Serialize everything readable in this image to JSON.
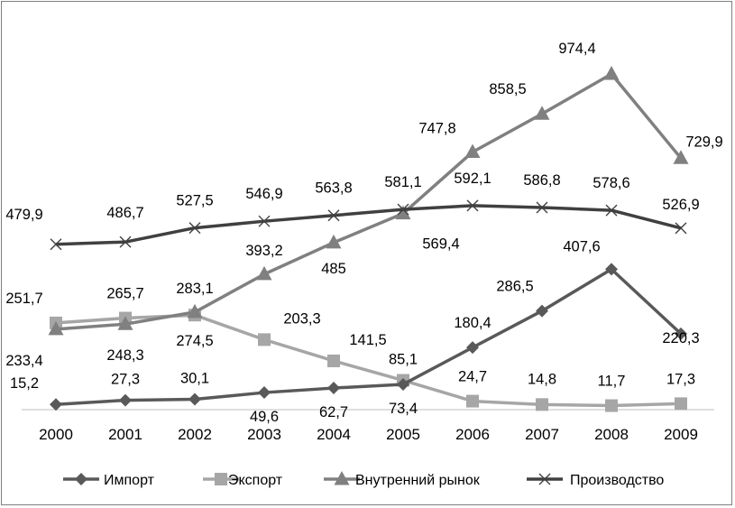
{
  "chart_data": {
    "type": "line",
    "title": "",
    "xlabel": "",
    "ylabel": "",
    "categories": [
      "2000",
      "2001",
      "2002",
      "2003",
      "2004",
      "2005",
      "2006",
      "2007",
      "2008",
      "2009"
    ],
    "ylim": [
      0,
      1100
    ],
    "grid": false,
    "legend_position": "bottom",
    "series": [
      {
        "name": "Импорт",
        "marker": "diamond",
        "color": "#595959",
        "values": [
          15.2,
          27.3,
          30.1,
          49.6,
          62.7,
          73.4,
          180.4,
          286.5,
          407.6,
          220.3
        ],
        "labels": [
          "15,2",
          "27,3",
          "30,1",
          "49,6",
          "62,7",
          "73,4",
          "180,4",
          "286,5",
          "407,6",
          "220,3"
        ]
      },
      {
        "name": "Экспорт",
        "marker": "square",
        "color": "#a6a6a6",
        "values": [
          251.7,
          265.7,
          274.5,
          203.3,
          141.5,
          85.1,
          24.7,
          14.8,
          11.7,
          17.3
        ],
        "labels": [
          "251,7",
          "265,7",
          "274,5",
          "203,3",
          "141,5",
          "85,1",
          "24,7",
          "14,8",
          "11,7",
          "17,3"
        ]
      },
      {
        "name": "Внутренний рынок",
        "marker": "triangle",
        "color": "#808080",
        "values": [
          233.4,
          248.3,
          283.1,
          393.2,
          485,
          569.4,
          747.8,
          858.5,
          974.4,
          729.9
        ],
        "labels": [
          "233,4",
          "248,3",
          "283,1",
          "393,2",
          "485",
          "569,4",
          "747,8",
          "858,5",
          "974,4",
          "729,9"
        ]
      },
      {
        "name": "Производство",
        "marker": "x",
        "color": "#404040",
        "values": [
          479.9,
          486.7,
          527.5,
          546.9,
          563.8,
          581.1,
          592.1,
          586.8,
          578.6,
          526.9
        ],
        "labels": [
          "479,9",
          "486,7",
          "527,5",
          "546,9",
          "563,8",
          "581,1",
          "592,1",
          "586,8",
          "578,6",
          "526,9"
        ]
      }
    ]
  }
}
